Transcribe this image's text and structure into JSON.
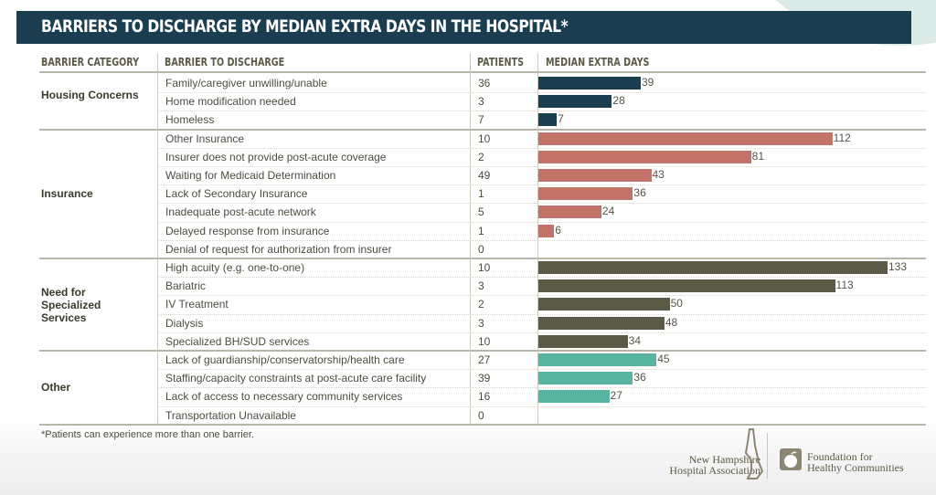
{
  "title": "BARRIERS TO DISCHARGE BY MEDIAN EXTRA DAYS IN THE HOSPITAL*",
  "columns": {
    "category": "BARRIER CATEGORY",
    "barrier": "BARRIER TO DISCHARGE",
    "patients": "PATIENTS",
    "median": "MEDIAN EXTRA DAYS"
  },
  "colors": {
    "housing": "#1b3d50",
    "insurance": "#c47167",
    "specialized": "#5b5a46",
    "other": "#55b5a0"
  },
  "footnote": "*Patients can experience more than one barrier.",
  "logos": {
    "nhha_line1": "New Hampshire",
    "nhha_line2": "Hospital Association",
    "fhc_line1": "Foundation for",
    "fhc_line2": "Healthy Communities"
  },
  "chart_data": {
    "type": "bar",
    "orientation": "horizontal",
    "title": "BARRIERS TO DISCHARGE BY MEDIAN EXTRA DAYS IN THE HOSPITAL*",
    "xlabel": "MEDIAN EXTRA DAYS",
    "xlim": [
      0,
      133
    ],
    "grid": false,
    "groups": [
      {
        "category": "Housing Concerns",
        "color_key": "housing",
        "rows": [
          {
            "barrier": "Family/caregiver unwilling/unable",
            "patients": 36,
            "median_days": 39
          },
          {
            "barrier": "Home modification needed",
            "patients": 3,
            "median_days": 28
          },
          {
            "barrier": "Homeless",
            "patients": 7,
            "median_days": 7
          }
        ]
      },
      {
        "category": "Insurance",
        "color_key": "insurance",
        "rows": [
          {
            "barrier": "Other Insurance",
            "patients": 10,
            "median_days": 112
          },
          {
            "barrier": "Insurer does not provide post-acute coverage",
            "patients": 2,
            "median_days": 81
          },
          {
            "barrier": "Waiting for Medicaid Determination",
            "patients": 49,
            "median_days": 43
          },
          {
            "barrier": "Lack of Secondary Insurance",
            "patients": 1,
            "median_days": 36
          },
          {
            "barrier": "Inadequate post-acute network",
            "patients": 5,
            "median_days": 24
          },
          {
            "barrier": "Delayed response from insurance",
            "patients": 1,
            "median_days": 6
          },
          {
            "barrier": "Denial of request for authorization from insurer",
            "patients": 0,
            "median_days": null
          }
        ]
      },
      {
        "category": "Need for Specialized Services",
        "color_key": "specialized",
        "rows": [
          {
            "barrier": "High acuity (e.g. one-to-one)",
            "patients": 10,
            "median_days": 133
          },
          {
            "barrier": "Bariatric",
            "patients": 3,
            "median_days": 113
          },
          {
            "barrier": "IV Treatment",
            "patients": 2,
            "median_days": 50
          },
          {
            "barrier": "Dialysis",
            "patients": 3,
            "median_days": 48
          },
          {
            "barrier": "Specialized BH/SUD services",
            "patients": 10,
            "median_days": 34
          }
        ]
      },
      {
        "category": "Other",
        "color_key": "other",
        "rows": [
          {
            "barrier": "Lack of guardianship/conservatorship/health care",
            "patients": 27,
            "median_days": 45
          },
          {
            "barrier": "Staffing/capacity constraints at post-acute care facility",
            "patients": 39,
            "median_days": 36
          },
          {
            "barrier": "Lack of access to necessary community services",
            "patients": 16,
            "median_days": 27
          },
          {
            "barrier": "Transportation Unavailable",
            "patients": 0,
            "median_days": null
          }
        ]
      }
    ]
  }
}
